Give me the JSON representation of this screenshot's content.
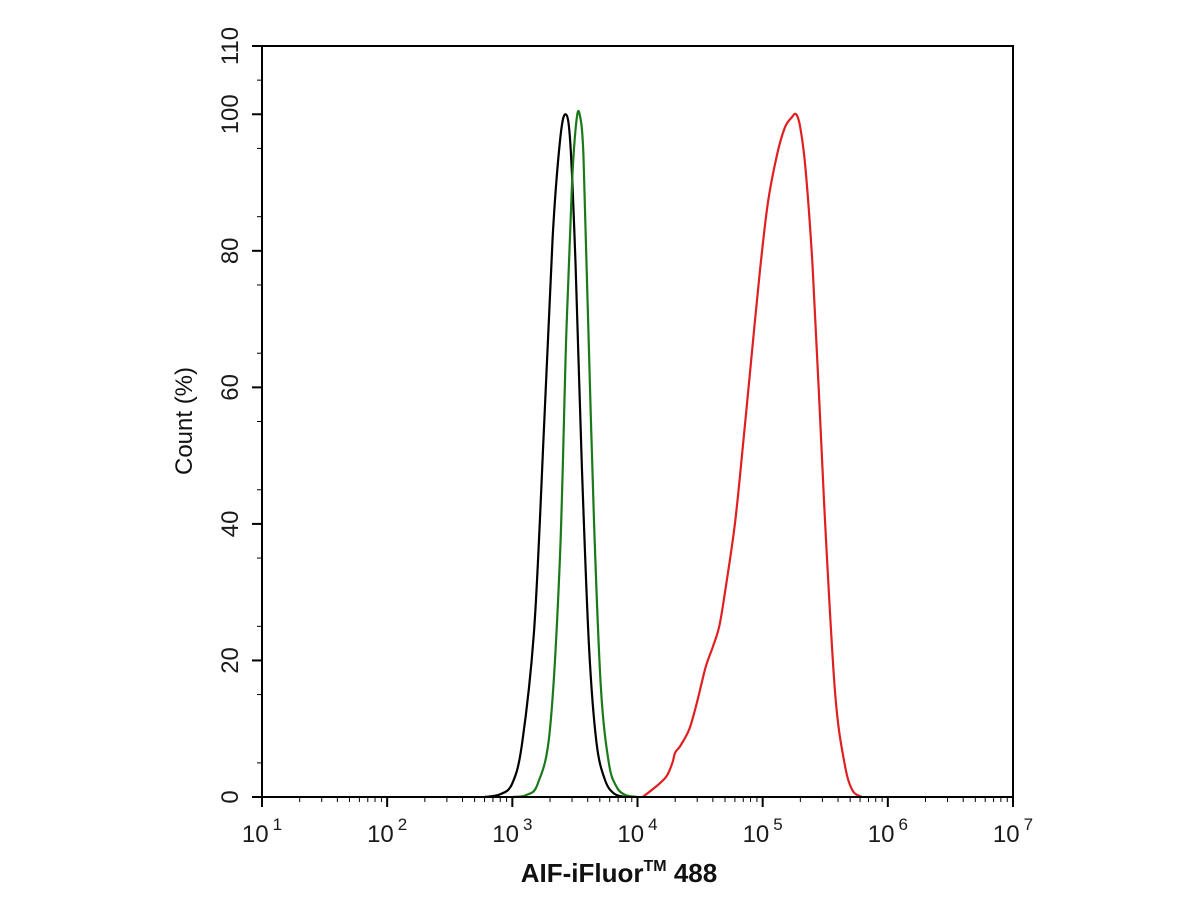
{
  "chart_data": {
    "type": "line",
    "title": "",
    "xlabel": "AIF-iFluor™ 488",
    "xlabel_main": "AIF-iFluor",
    "xlabel_sup": "TM",
    "xlabel_tail": " 488",
    "ylabel": "Count  (%)",
    "x_scale": "log",
    "xlim": [
      10,
      10000000
    ],
    "ylim": [
      0,
      110
    ],
    "grid": false,
    "legend": "none",
    "x_ticks": [
      {
        "base": "10",
        "exp": "1"
      },
      {
        "base": "10",
        "exp": "2"
      },
      {
        "base": "10",
        "exp": "3"
      },
      {
        "base": "10",
        "exp": "4"
      },
      {
        "base": "10",
        "exp": "5"
      },
      {
        "base": "10",
        "exp": "6"
      },
      {
        "base": "10",
        "exp": "7"
      }
    ],
    "y_ticks": [
      "0",
      "20",
      "40",
      "60",
      "80",
      "100",
      "110"
    ],
    "series": [
      {
        "color": "#000000",
        "x": [
          600,
          800,
          1000,
          1200,
          1500,
          1800,
          2100,
          2400,
          2650,
          2900,
          3200,
          3600,
          4100,
          4700,
          5500,
          6500,
          8000
        ],
        "y": [
          0,
          0.4,
          2,
          8,
          25,
          55,
          82,
          96,
          100,
          96,
          78,
          48,
          22,
          8,
          2.5,
          0.5,
          0
        ]
      },
      {
        "color": "#1a7a1a",
        "x": [
          1000,
          1300,
          1600,
          2000,
          2400,
          2700,
          3000,
          3250,
          3450,
          3700,
          4000,
          4500,
          5100,
          5900,
          6800,
          8000,
          10000
        ],
        "y": [
          0,
          0.3,
          2,
          10,
          35,
          68,
          90,
          99,
          100,
          94,
          72,
          40,
          16,
          5,
          1.5,
          0.3,
          0
        ]
      },
      {
        "color": "#e02020",
        "x": [
          11000,
          14000,
          17000,
          19000,
          20000,
          22000,
          26000,
          30000,
          35000,
          40000,
          45000,
          50000,
          60000,
          70000,
          80000,
          95000,
          110000,
          130000,
          150000,
          170000,
          185000,
          200000,
          220000,
          250000,
          280000,
          320000,
          380000,
          450000,
          520000,
          620000
        ],
        "y": [
          0,
          1.5,
          3,
          5,
          6.5,
          7.5,
          10,
          14,
          19,
          22,
          25,
          30,
          40,
          52,
          63,
          77,
          87,
          94,
          98,
          99.5,
          100,
          98,
          92,
          78,
          60,
          38,
          15,
          5,
          1,
          0
        ]
      }
    ]
  }
}
